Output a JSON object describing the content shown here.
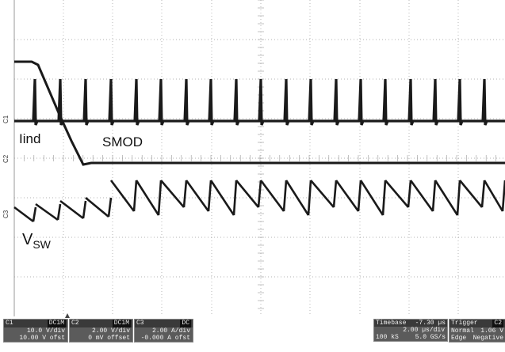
{
  "labels": {
    "lind": "Iind",
    "smod": "SMOD",
    "vsw_main": "V",
    "vsw_sub": "SW"
  },
  "channel_markers": {
    "c1": "C1",
    "c2": "C2",
    "c3": "C3"
  },
  "channels": [
    {
      "name": "C1",
      "coupling": "DC1M",
      "scale": "10.0 V/div",
      "offset": "10.00 V ofst"
    },
    {
      "name": "C2",
      "coupling": "DC1M",
      "scale": "2.00 V/div",
      "offset": "0 mV offset"
    },
    {
      "name": "C3",
      "coupling": "DC",
      "scale": "2.00 A/div",
      "offset": "-0.000 A ofst"
    }
  ],
  "timebase": {
    "label": "Timebase",
    "delay": "-7.30 µs",
    "scale": "2.00 µs/div",
    "samples": "100 kS",
    "rate": "5.0 GS/s"
  },
  "trigger": {
    "label": "Trigger",
    "channel": "C2",
    "mode": "Normal",
    "level": "1.06 V",
    "type": "Edge",
    "slope": "Negative"
  },
  "colors": {
    "trace": "#1a1a1a",
    "grid": "#9a9a9a",
    "panel": "#5b5b5b"
  }
}
